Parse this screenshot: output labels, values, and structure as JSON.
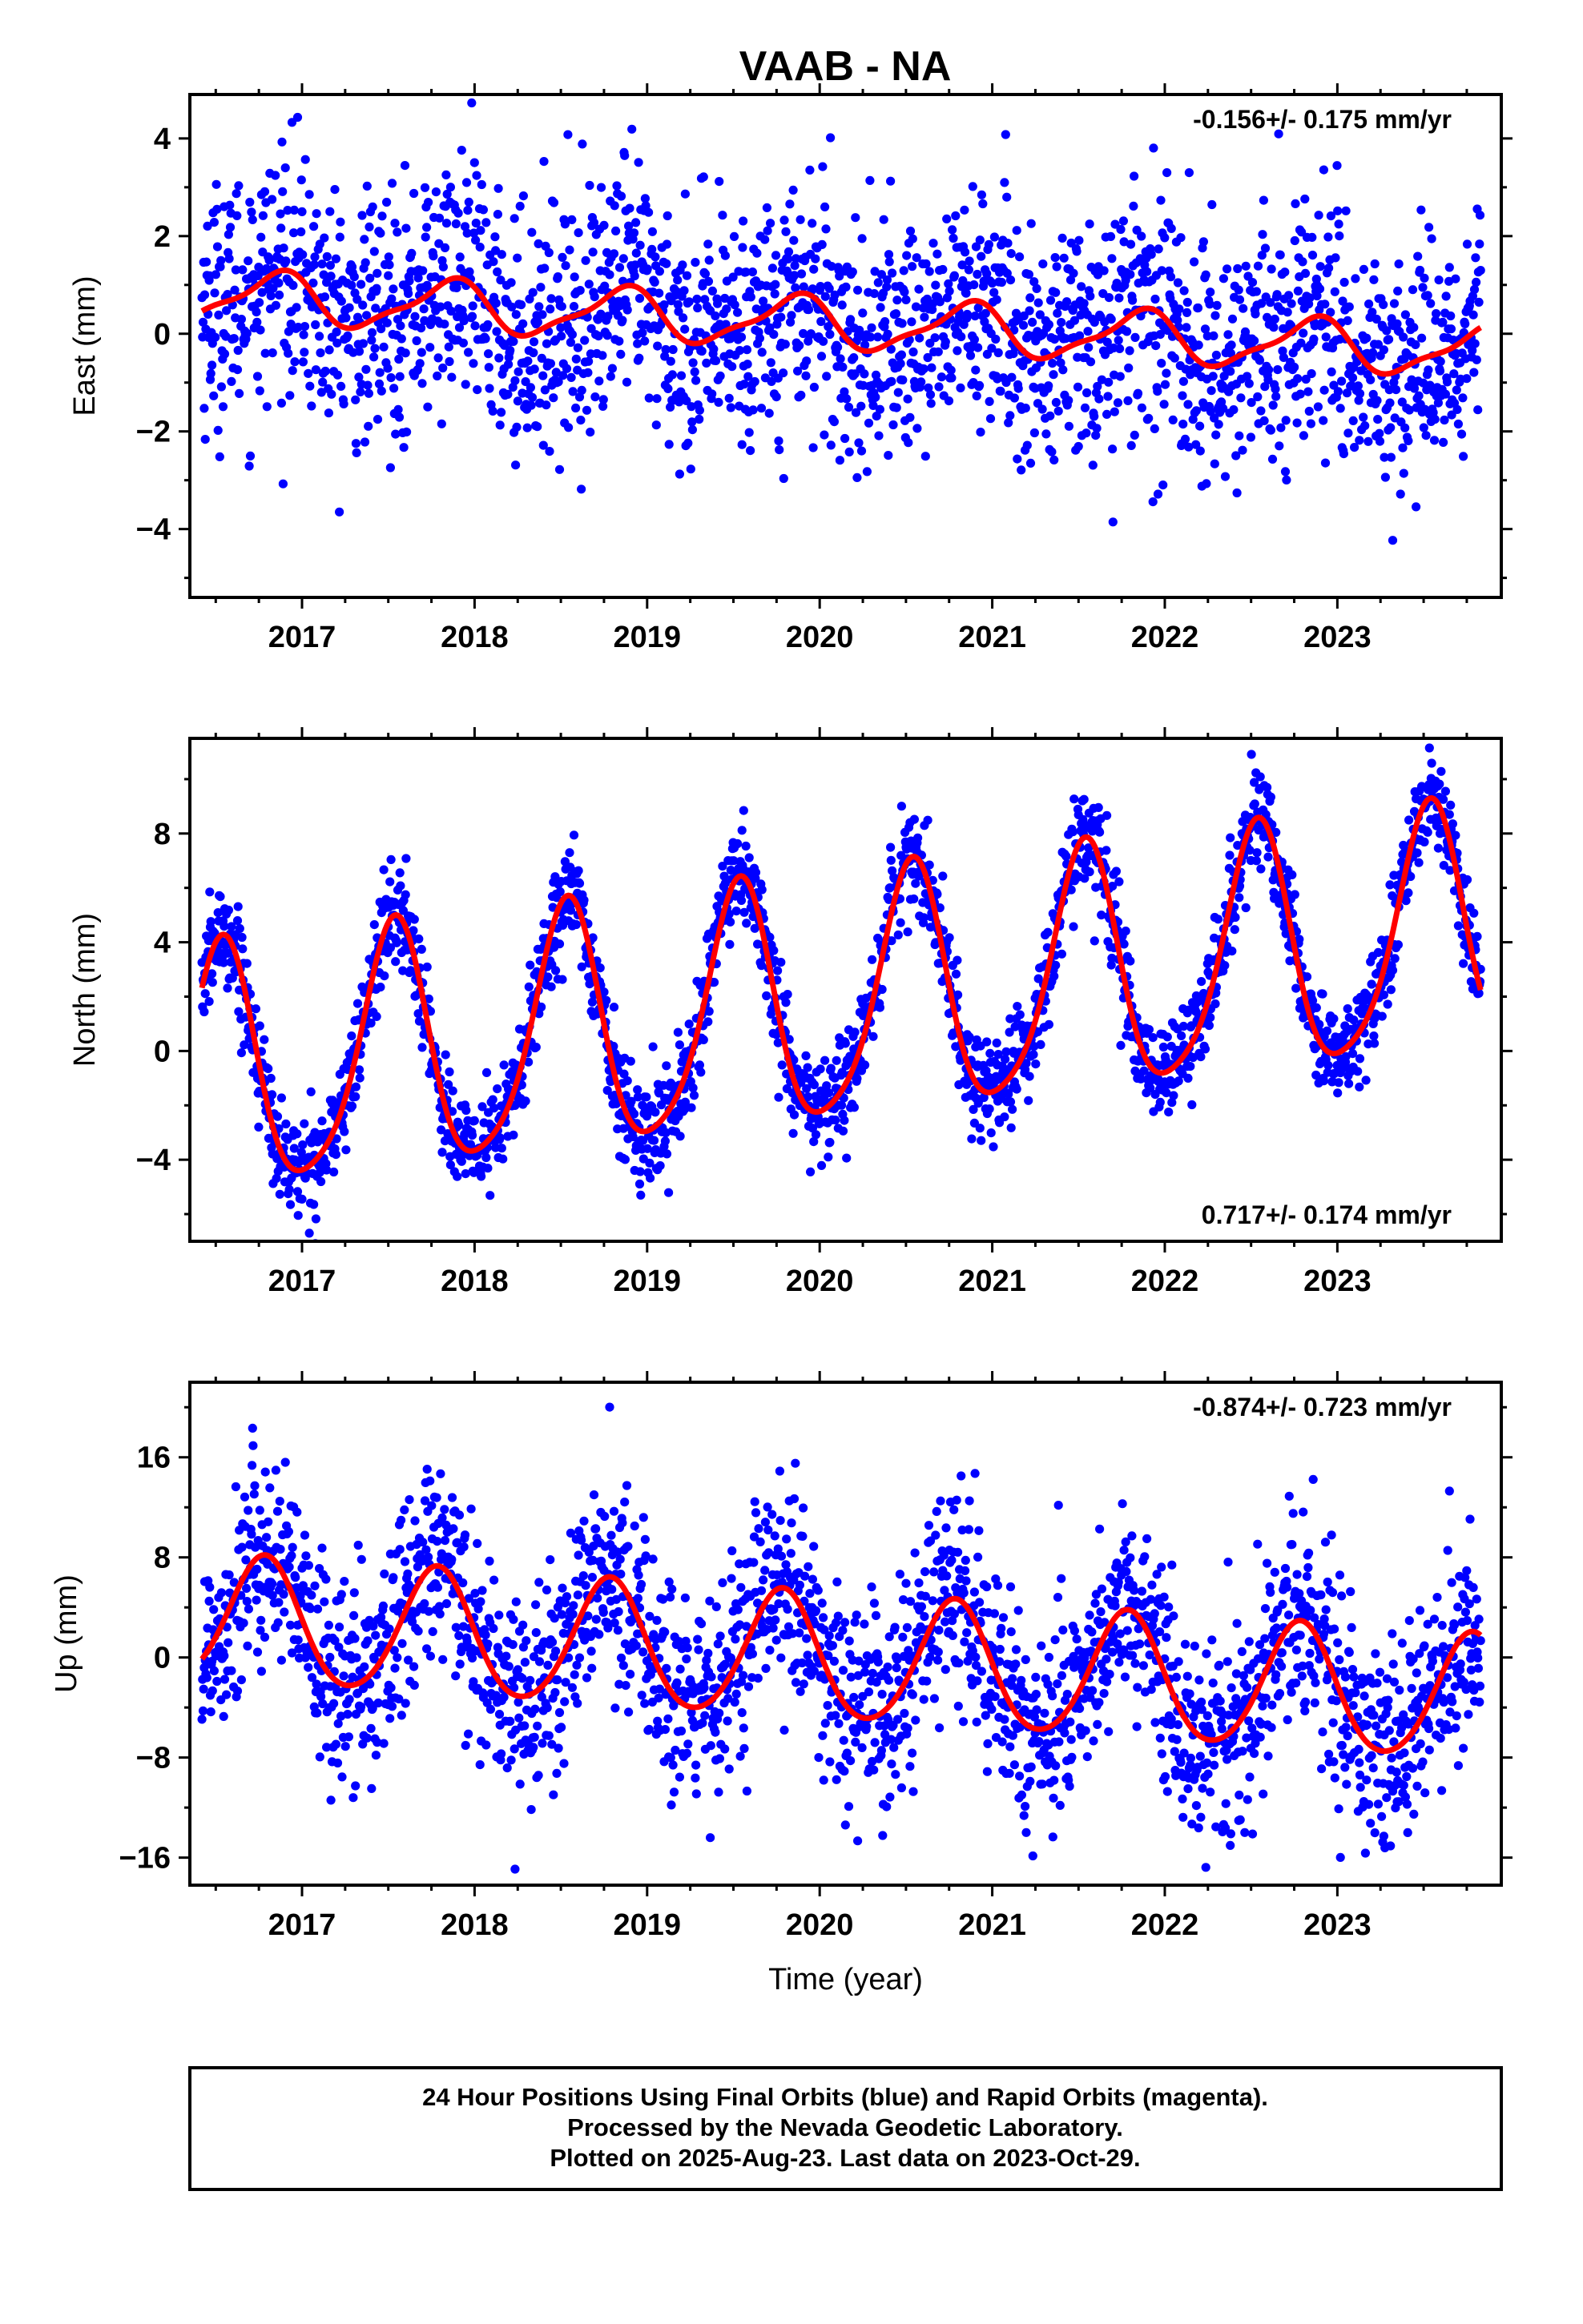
{
  "title": "VAAB - NA",
  "colors": {
    "final_orbits": "#0000ff",
    "fit": "#ff0000",
    "frame": "#000000"
  },
  "footer": {
    "line1": "24 Hour Positions Using Final Orbits (blue) and Rapid Orbits (magenta).",
    "line2": "Processed by the Nevada Geodetic Laboratory.",
    "line3": "Plotted on 2025-Aug-23. Last data on 2023-Oct-29."
  },
  "chart_data": [
    {
      "type": "scatter",
      "component": "east",
      "ylabel": "East (mm)",
      "xlabel": "",
      "rate_label": "-0.156+/- 0.175 mm/yr",
      "rate_position": "top-right",
      "xlim": [
        2016.35,
        2023.95
      ],
      "ylim": [
        -5.4,
        4.9
      ],
      "yticks": [
        -4,
        -2,
        0,
        2,
        4
      ],
      "ytick_labels": [
        "−4",
        "−2",
        "0",
        "2",
        "4"
      ],
      "xticks": [
        2017,
        2018,
        2019,
        2020,
        2021,
        2022,
        2023
      ],
      "xtick_labels": [
        "2017",
        "2018",
        "2019",
        "2020",
        "2021",
        "2022",
        "2023"
      ],
      "data_start": 2016.42,
      "data_end": 2023.83,
      "points_shown": 2300,
      "scatter_sigma_mm": 1.25,
      "fit": {
        "intercept_2020": 0.22,
        "rate": -0.156,
        "annual_amp": 0.5,
        "annual_peak": 2016.85,
        "semiannual_amp": 0.15,
        "semiannual_peak": 2016.95
      },
      "fit_curve": {
        "x": [
          2016.45,
          2016.7,
          2016.85,
          2017.1,
          2017.3,
          2017.45,
          2017.65,
          2017.85,
          2018.1,
          2018.3,
          2018.45,
          2018.65,
          2018.85,
          2019.1,
          2019.3,
          2019.45,
          2019.65,
          2019.85,
          2020.1,
          2020.3,
          2020.45,
          2020.65,
          2020.85,
          2021.1,
          2021.3,
          2021.45,
          2021.65,
          2021.85,
          2022.1,
          2022.3,
          2022.45,
          2022.65,
          2022.85,
          2023.1,
          2023.3,
          2023.45,
          2023.65,
          2023.83
        ],
        "y": [
          -0.2,
          0.8,
          0.85,
          0.7,
          0.1,
          -0.4,
          0.5,
          0.7,
          0.55,
          -0.2,
          -0.6,
          0.4,
          0.55,
          0.35,
          -0.35,
          -0.7,
          0.3,
          0.35,
          0.2,
          -0.5,
          -0.85,
          0.15,
          0.2,
          0.05,
          -0.6,
          -1.0,
          0.05,
          0.05,
          -0.15,
          -0.75,
          -1.15,
          -0.1,
          -0.1,
          -0.3,
          -0.9,
          -1.3,
          -0.3,
          -0.3
        ]
      }
    },
    {
      "type": "scatter",
      "component": "north",
      "ylabel": "North (mm)",
      "xlabel": "",
      "rate_label": "0.717+/- 0.174 mm/yr",
      "rate_position": "bottom-right",
      "xlim": [
        2016.35,
        2023.95
      ],
      "ylim": [
        -7.0,
        11.5
      ],
      "yticks": [
        -4,
        0,
        4,
        8
      ],
      "ytick_labels": [
        "−4",
        "0",
        "4",
        "8"
      ],
      "xticks": [
        2017,
        2018,
        2019,
        2020,
        2021,
        2022,
        2023
      ],
      "xtick_labels": [
        "2017",
        "2018",
        "2019",
        "2020",
        "2021",
        "2022",
        "2023"
      ],
      "data_start": 2016.42,
      "data_end": 2023.83,
      "points_shown": 2300,
      "scatter_sigma_mm": 0.95,
      "fit": {
        "intercept_2020": 1.6,
        "rate": 0.717,
        "annual_amp": 4.45,
        "annual_peak": 2016.53,
        "semiannual_amp": 0.75,
        "semiannual_peak": 2016.56
      },
      "fit_curve": {
        "x": [
          2016.45,
          2016.55,
          2016.75,
          2016.95,
          2017.2,
          2017.35,
          2017.55,
          2017.75,
          2017.95,
          2018.2,
          2018.35,
          2018.55,
          2018.75,
          2018.95,
          2019.2,
          2019.35,
          2019.55,
          2019.75,
          2019.95,
          2020.2,
          2020.35,
          2020.55,
          2020.75,
          2020.95,
          2021.2,
          2021.35,
          2021.55,
          2021.75,
          2021.95,
          2022.2,
          2022.35,
          2022.55,
          2022.75,
          2022.95,
          2023.2,
          2023.35,
          2023.55,
          2023.83
        ],
        "y": [
          1.3,
          3.0,
          -2.0,
          -4.8,
          -4.4,
          -1.0,
          3.6,
          -1.4,
          -4.1,
          -3.7,
          -0.2,
          4.3,
          -0.7,
          -3.4,
          -3.0,
          0.5,
          5.1,
          0.0,
          -2.7,
          -2.3,
          1.2,
          5.8,
          0.7,
          -2.0,
          -1.6,
          2.0,
          6.5,
          1.4,
          -1.3,
          -0.9,
          2.7,
          7.2,
          2.1,
          -0.6,
          -0.2,
          3.4,
          7.9,
          0.5
        ]
      }
    },
    {
      "type": "scatter",
      "component": "up",
      "ylabel": "Up (mm)",
      "xlabel": "Time (year)",
      "rate_label": "-0.874+/- 0.723 mm/yr",
      "rate_position": "top-right",
      "xlim": [
        2016.35,
        2023.95
      ],
      "ylim": [
        -18.2,
        22.0
      ],
      "yticks": [
        -16,
        -8,
        0,
        8,
        16
      ],
      "ytick_labels": [
        "−16",
        "−8",
        "0",
        "8",
        "16"
      ],
      "xticks": [
        2017,
        2018,
        2019,
        2020,
        2021,
        2022,
        2023
      ],
      "xtick_labels": [
        "2017",
        "2018",
        "2019",
        "2020",
        "2021",
        "2022",
        "2023"
      ],
      "data_start": 2016.42,
      "data_end": 2023.83,
      "points_shown": 2300,
      "scatter_sigma_mm": 4.2,
      "fit": {
        "intercept_2020": -0.1,
        "rate": -0.874,
        "annual_amp": 5.0,
        "annual_peak": 2016.78,
        "semiannual_amp": 0.5,
        "semiannual_peak": 2016.8
      },
      "fit_curve": {
        "x": [
          2016.45,
          2016.6,
          2016.8,
          2017.0,
          2017.25,
          2017.4,
          2017.6,
          2017.8,
          2018.0,
          2018.25,
          2018.4,
          2018.6,
          2018.8,
          2019.0,
          2019.25,
          2019.4,
          2019.6,
          2019.8,
          2020.0,
          2020.25,
          2020.4,
          2020.6,
          2020.8,
          2021.0,
          2021.25,
          2021.4,
          2021.6,
          2021.8,
          2022.0,
          2022.25,
          2022.4,
          2022.6,
          2022.8,
          2023.0,
          2023.25,
          2023.4,
          2023.6,
          2023.83
        ],
        "y": [
          0.5,
          5.0,
          7.5,
          3.0,
          -2.5,
          -0.5,
          4.0,
          6.5,
          2.2,
          -3.3,
          -1.2,
          3.2,
          5.7,
          1.4,
          -4.1,
          -2.0,
          2.4,
          4.9,
          0.6,
          -4.9,
          -2.8,
          1.6,
          4.1,
          -0.2,
          -5.7,
          -3.6,
          0.8,
          3.3,
          -1.0,
          -6.5,
          -4.4,
          0.0,
          2.5,
          -1.8,
          -7.3,
          -5.2,
          -0.8,
          1.5
        ]
      }
    }
  ]
}
